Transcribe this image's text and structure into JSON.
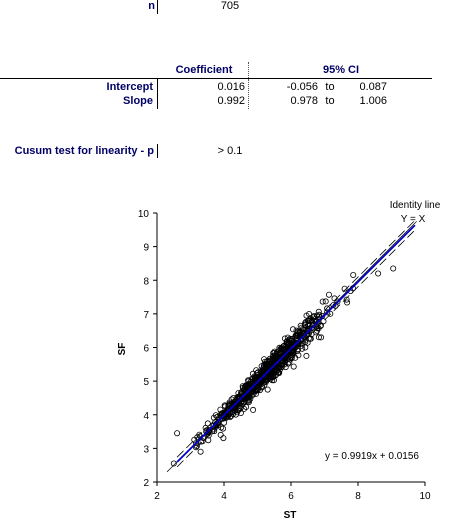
{
  "summary": {
    "n_label": "n",
    "n_value": "705"
  },
  "table": {
    "headers": [
      "Coefficient",
      "95% CI"
    ],
    "rows": [
      {
        "label": "Intercept",
        "coef": "0.016",
        "ci_low": "-0.056",
        "ci_sep": "to",
        "ci_high": "0.087"
      },
      {
        "label": "Slope",
        "coef": "0.992",
        "ci_low": "0.978",
        "ci_sep": "to",
        "ci_high": "1.006"
      }
    ]
  },
  "cusum": {
    "label": "Cusum test for linearity - p",
    "value": "> 0.1"
  },
  "chart_data": {
    "type": "scatter",
    "title": "",
    "xlabel": "ST",
    "ylabel": "SF",
    "xlim": [
      2,
      10
    ],
    "ylim": [
      2,
      10
    ],
    "xticks": [
      2,
      4,
      6,
      8,
      10
    ],
    "yticks": [
      2,
      3,
      4,
      5,
      6,
      7,
      8,
      9,
      10
    ],
    "grid": false,
    "identity_label_line1": "Identity line",
    "identity_label_line2": "Y = X",
    "equation": "y = 0.9919x + 0.0156",
    "fit": {
      "slope": 0.9919,
      "intercept": 0.0156
    },
    "ci_band": {
      "offset_low": 0.09,
      "offset_high": 0.09
    },
    "n_points": 705,
    "x_center": 5.3,
    "x_sd": 0.85,
    "y_noise_sd": 0.22,
    "x_range": [
      2.5,
      9.8
    ],
    "outliers": [
      [
        2.6,
        3.45
      ],
      [
        9.05,
        8.35
      ],
      [
        8.6,
        8.2
      ],
      [
        5.0,
        5.0
      ],
      [
        3.3,
        2.9
      ],
      [
        3.9,
        3.4
      ],
      [
        6.9,
        6.3
      ],
      [
        7.6,
        7.75
      ]
    ],
    "colors": {
      "points": "#000000",
      "fit": "#0000cc",
      "identity": "#000000",
      "ci": "#000000"
    }
  }
}
